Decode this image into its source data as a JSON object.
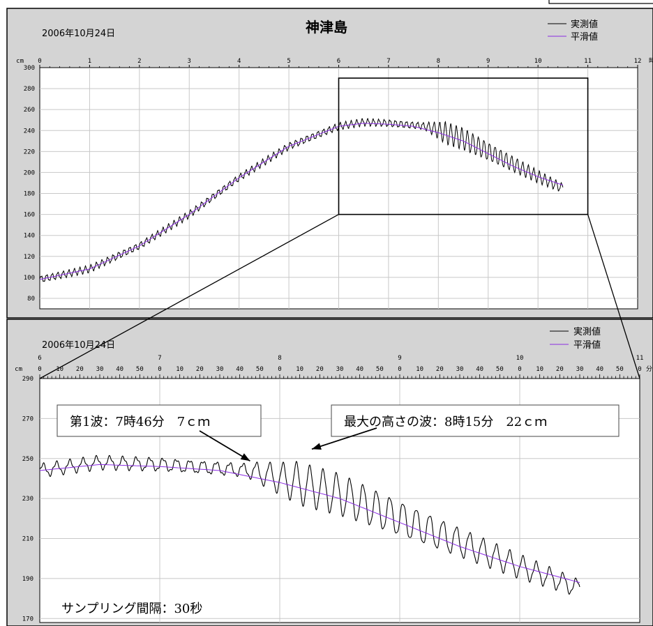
{
  "colors": {
    "panel_bg": "#d4d4d4",
    "plot_bg": "#ffffff",
    "grid": "#c8c8c8",
    "observed": "#000000",
    "smoothed": "#8a2be2"
  },
  "chart_data": [
    {
      "type": "line",
      "title": "神津島",
      "date": "2006年10月24日",
      "xlabel": "時",
      "ylabel": "cm",
      "xlim": [
        0,
        12
      ],
      "ylim": [
        70,
        300
      ],
      "x_ticks": [
        "0",
        "1",
        "2",
        "3",
        "4",
        "5",
        "6",
        "7",
        "8",
        "9",
        "10",
        "11",
        "12"
      ],
      "y_ticks": [
        "300",
        "280",
        "260",
        "240",
        "220",
        "200",
        "180",
        "160",
        "140",
        "120",
        "100",
        "80"
      ],
      "legend": {
        "position": "top-right",
        "entries": [
          "実測値",
          "平滑値"
        ]
      },
      "grid": true,
      "zoom_box": {
        "x": [
          6,
          11
        ],
        "y": [
          160,
          290
        ]
      },
      "series": [
        {
          "name": "実測値",
          "style": "noisy",
          "x": [
            0,
            1,
            2,
            3,
            4,
            5,
            6,
            6.5,
            7,
            7.5,
            7.75,
            8,
            8.25,
            8.5,
            9,
            9.5,
            10,
            10.5
          ],
          "values": [
            98,
            108,
            130,
            160,
            195,
            225,
            244,
            248,
            247,
            245,
            244,
            240,
            236,
            232,
            220,
            208,
            196,
            185
          ]
        },
        {
          "name": "平滑値",
          "x": [
            0,
            1,
            2,
            3,
            4,
            5,
            6,
            6.5,
            7,
            7.5,
            8,
            8.5,
            9,
            9.5,
            10,
            10.5
          ],
          "values": [
            98,
            108,
            130,
            160,
            195,
            225,
            244,
            247,
            246,
            244,
            238,
            230,
            218,
            206,
            196,
            188
          ]
        }
      ]
    },
    {
      "type": "line",
      "date": "2006年10月24日",
      "xlabel": "分",
      "ylabel": "cm",
      "xlim": [
        6,
        11
      ],
      "ylim": [
        168,
        290
      ],
      "hour_labels": [
        "6",
        "7",
        "8",
        "9",
        "10",
        "11"
      ],
      "minute_labels": [
        "0",
        "10",
        "20",
        "30",
        "40",
        "50"
      ],
      "y_ticks": [
        "290",
        "270",
        "250",
        "230",
        "210",
        "190",
        "170"
      ],
      "legend": {
        "position": "top-right",
        "entries": [
          "実測値",
          "平滑値"
        ]
      },
      "grid": true,
      "annotations": [
        {
          "text": "第1波：7時46分　7ｃｍ",
          "x": 7.77,
          "y": 246
        },
        {
          "text": "最大の高さの波：8時15分　22ｃｍ",
          "x": 8.25,
          "y": 254
        },
        {
          "text": "サンプリング間隔：30秒"
        }
      ],
      "series": [
        {
          "name": "実測値",
          "style": "noisy",
          "x": [
            6,
            6.5,
            7,
            7.5,
            7.75,
            8,
            8.25,
            8.5,
            9,
            9.5,
            10,
            10.5
          ],
          "values": [
            244,
            248,
            247,
            245,
            244,
            240,
            236,
            232,
            220,
            208,
            196,
            185
          ]
        },
        {
          "name": "平滑値",
          "x": [
            6,
            6.5,
            7,
            7.5,
            8,
            8.5,
            9,
            9.5,
            10,
            10.5
          ],
          "values": [
            244,
            247,
            246,
            244,
            238,
            230,
            218,
            206,
            196,
            188
          ]
        }
      ]
    }
  ]
}
